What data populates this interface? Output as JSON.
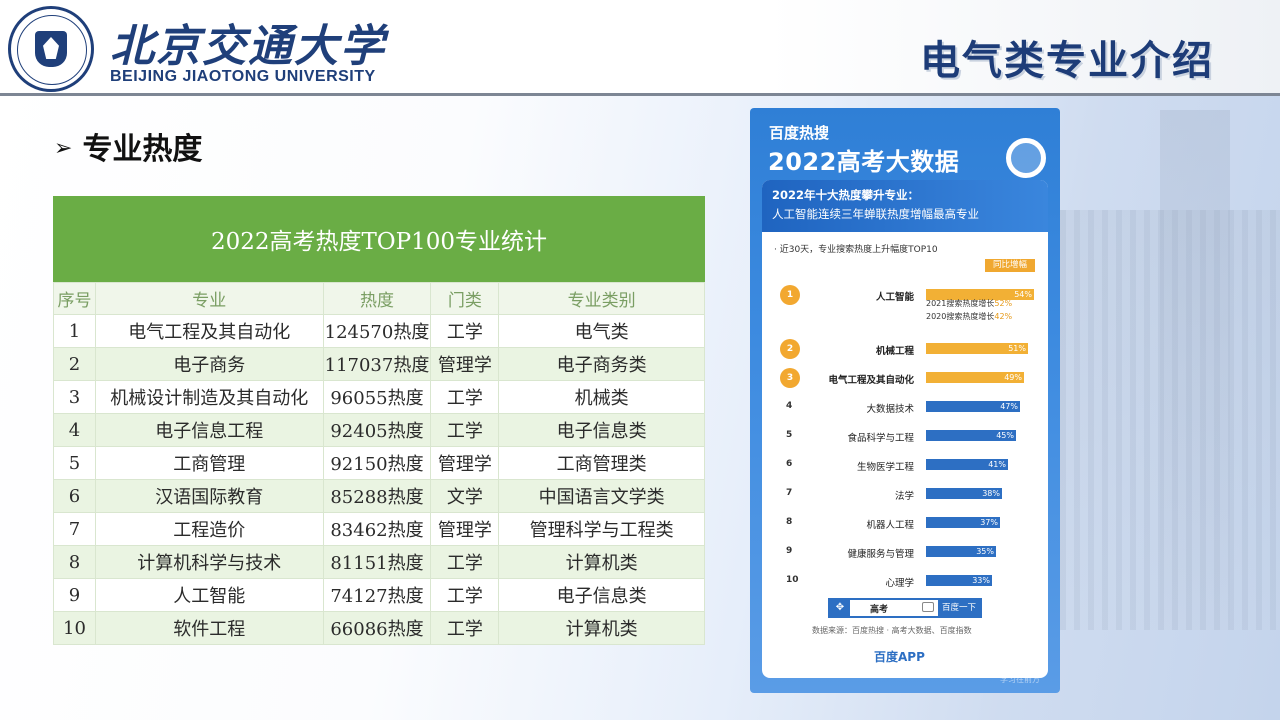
{
  "header": {
    "logo_cn": "北京交通大学",
    "logo_en": "BEIJING JIAOTONG UNIVERSITY",
    "title": "电气类专业介绍"
  },
  "section": {
    "arrow": "➢",
    "label": "专业热度"
  },
  "table": {
    "caption": "2022高考热度TOP100专业统计",
    "columns": [
      "序号",
      "专业",
      "热度",
      "门类",
      "专业类别"
    ],
    "rows": [
      [
        "1",
        "电气工程及其自动化",
        "124570热度",
        "工学",
        "电气类"
      ],
      [
        "2",
        "电子商务",
        "117037热度",
        "管理学",
        "电子商务类"
      ],
      [
        "3",
        "机械设计制造及其自动化",
        "96055热度",
        "工学",
        "机械类"
      ],
      [
        "4",
        "电子信息工程",
        "92405热度",
        "工学",
        "电子信息类"
      ],
      [
        "5",
        "工商管理",
        "92150热度",
        "管理学",
        "工商管理类"
      ],
      [
        "6",
        "汉语国际教育",
        "85288热度",
        "文学",
        "中国语言文学类"
      ],
      [
        "7",
        "工程造价",
        "83462热度",
        "管理学",
        "管理科学与工程类"
      ],
      [
        "8",
        "计算机科学与技术",
        "81151热度",
        "工学",
        "计算机类"
      ],
      [
        "9",
        "人工智能",
        "74127热度",
        "工学",
        "电子信息类"
      ],
      [
        "10",
        "软件工程",
        "66086热度",
        "工学",
        "计算机类"
      ]
    ]
  },
  "infographic": {
    "brand": "百度热搜",
    "title": "2022高考大数据",
    "head_line1": "2022年十大热度攀升专业：",
    "head_line2": "人工智能连续三年蝉联热度增幅最高专业",
    "subtitle": "· 近30天，专业搜索热度上升幅度TOP10",
    "change_tag": "同比增幅",
    "extra1": "2021搜索热度增长",
    "extra1_val": "52%",
    "extra2": "2020搜索热度增长",
    "extra2_val": "42%",
    "ranks": [
      {
        "n": "1",
        "name": "人工智能",
        "pct": "54%",
        "value": 54
      },
      {
        "n": "2",
        "name": "机械工程",
        "pct": "51%",
        "value": 51
      },
      {
        "n": "3",
        "name": "电气工程及其自动化",
        "pct": "49%",
        "value": 49
      },
      {
        "n": "4",
        "name": "大数据技术",
        "pct": "47%",
        "value": 47
      },
      {
        "n": "5",
        "name": "食品科学与工程",
        "pct": "45%",
        "value": 45
      },
      {
        "n": "6",
        "name": "生物医学工程",
        "pct": "41%",
        "value": 41
      },
      {
        "n": "7",
        "name": "法学",
        "pct": "38%",
        "value": 38
      },
      {
        "n": "8",
        "name": "机器人工程",
        "pct": "37%",
        "value": 37
      },
      {
        "n": "9",
        "name": "健康服务与管理",
        "pct": "35%",
        "value": 35
      },
      {
        "n": "10",
        "name": "心理学",
        "pct": "33%",
        "value": 33
      }
    ],
    "search_word": "高考",
    "search_button": "百度一下",
    "source": "数据来源：百度热搜 · 高考大数据、百度指数",
    "app": "百度APP",
    "watermark": "学习在前方",
    "colors": {
      "accent_orange": "#f2b035",
      "accent_blue": "#2d6fc3",
      "table_green": "#6aad45"
    }
  }
}
